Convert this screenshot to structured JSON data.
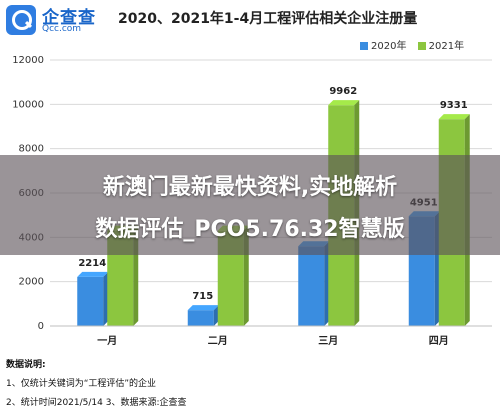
{
  "header": {
    "logo_cn": "企查查",
    "logo_en": "Qcc.com"
  },
  "chart_data": {
    "type": "bar",
    "title": "2020、2021年1-4月工程评估相关企业注册量",
    "categories": [
      "一月",
      "二月",
      "三月",
      "四月"
    ],
    "series": [
      {
        "name": "2020年",
        "values": [
          2214,
          715,
          3600,
          4951
        ],
        "labels": [
          "2214",
          "715",
          "",
          "4951"
        ],
        "color": "#3a8de0"
      },
      {
        "name": "2021年",
        "values": [
          4300,
          4300,
          9962,
          9331
        ],
        "labels": [
          "",
          "",
          "9962",
          "9331"
        ],
        "color": "#8cc63f"
      }
    ],
    "yticks": [
      "0",
      "2000",
      "4000",
      "6000",
      "8000",
      "10000",
      "12000"
    ],
    "ylim": [
      0,
      12000
    ],
    "legend_position": "top-right"
  },
  "overlay": {
    "line1": "新澳门最新最快资料,实地解析",
    "line2": "数据评估_PCO5.76.32智慧版"
  },
  "notes": {
    "title": "数据说明:",
    "line1": "1、仅统计关键词为“工程评估”的企业",
    "line2": "2、统计时间2021/5/14  3、数据来源:企查查"
  }
}
